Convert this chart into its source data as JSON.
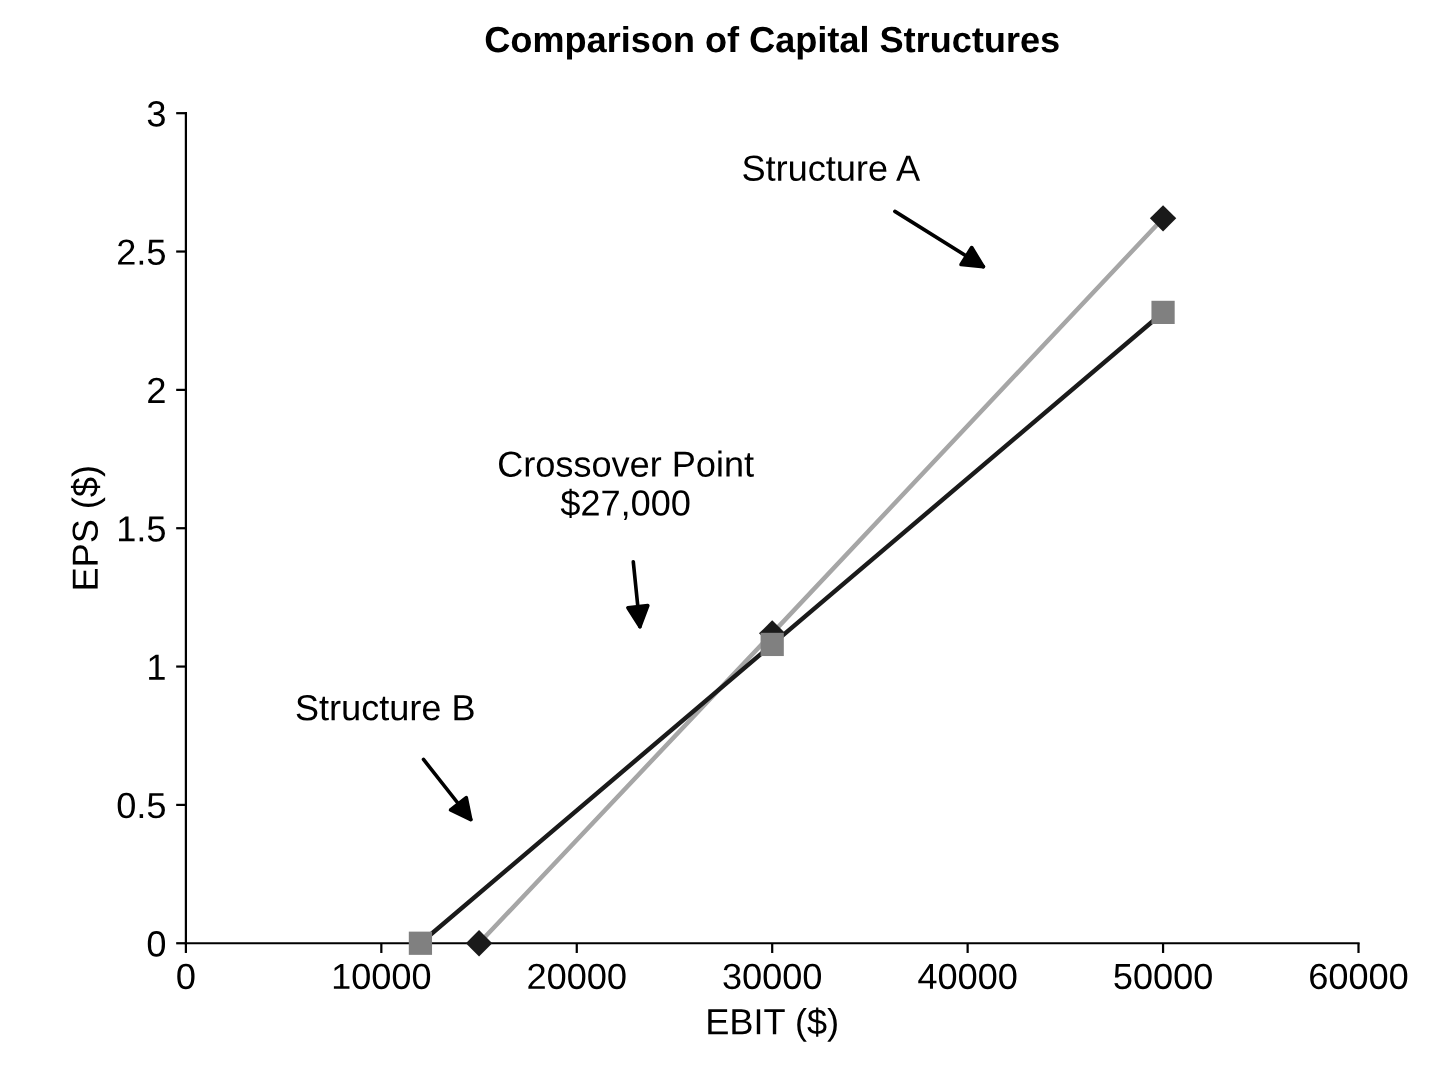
{
  "chart_data": {
    "type": "line",
    "title": "Comparison of Capital Structures",
    "xlabel": "EBIT ($)",
    "ylabel": "EPS ($)",
    "series": [
      {
        "x": [
          15000,
          30000,
          50000
        ],
        "values": [
          0,
          1.12,
          2.62
        ],
        "color": "#a6a6a6",
        "colors": [
          "#1a1a1a",
          "#1a1a1a",
          "#1a1a1a"
        ],
        "marker": "diamond"
      },
      {
        "x": [
          12000,
          30000,
          50000
        ],
        "values": [
          0,
          1.08,
          2.28
        ],
        "color": "#1a1a1a",
        "colors": [
          "#808080",
          "#808080",
          "#808080"
        ],
        "marker": "square"
      }
    ],
    "annotations": [
      "Structure A",
      "Crossover Point\n$27,000",
      "Structure B"
    ],
    "xlim": [
      0,
      60000
    ],
    "xticks": [
      0,
      10000,
      20000,
      30000,
      40000,
      50000,
      60000
    ],
    "ylim": [
      0,
      3
    ],
    "yticks": [
      0,
      0.5,
      1,
      1.5,
      2,
      2.5,
      3
    ],
    "grid": false,
    "legend": false,
    "line_style": "solid"
  }
}
